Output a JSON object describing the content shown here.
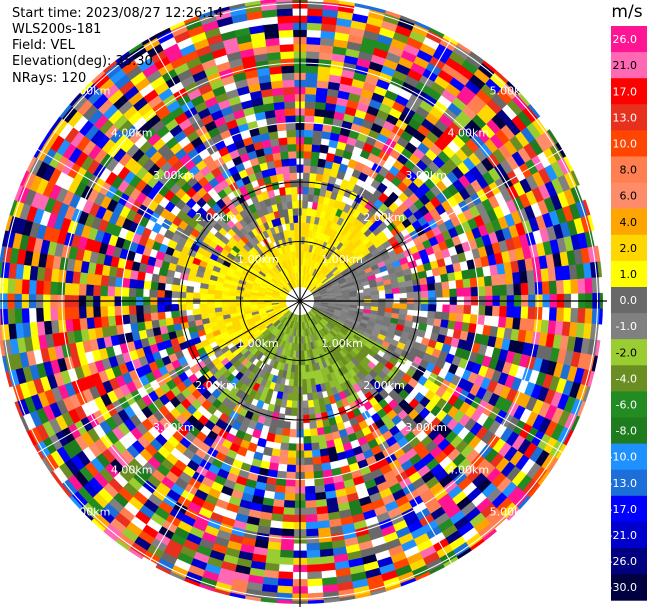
{
  "header": {
    "start_time": "Start time: 2023/08/27 12:26:14",
    "site": "WLS200s-181",
    "field": "Field: VEL",
    "elevation": "Elevation(deg): 35.30",
    "nrays": "NRays: 120"
  },
  "chart_data": {
    "type": "ppi-polar",
    "field": "VEL",
    "units": "m/s",
    "elevation_deg": 35.3,
    "n_rays": 120,
    "range_ring_labels": [
      "1.00km",
      "2.00km",
      "3.00km",
      "4.00km",
      "5.00km"
    ],
    "colorbar": {
      "label": "m/s",
      "ticks": [
        "26.0",
        "21.0",
        "17.0",
        "13.0",
        "10.0",
        "8.0",
        "6.0",
        "4.0",
        "2.0",
        "1.0",
        "0.0",
        "-1.0",
        "-2.0",
        "-4.0",
        "-6.0",
        "-8.0",
        "-10.0",
        "-13.0",
        "-17.0",
        "-21.0",
        "-26.0",
        "-30.0"
      ],
      "colors": [
        "#ff1493",
        "#ff69b4",
        "#ff0000",
        "#e8301f",
        "#ff4500",
        "#ff7f50",
        "#ff8c69",
        "#ffa500",
        "#ffd700",
        "#ffff00",
        "#696969",
        "#808080",
        "#9acd32",
        "#6b8e23",
        "#228b22",
        "#1e7b1e",
        "#1e90ff",
        "#1c6fd9",
        "#0000ff",
        "#0000cd",
        "#000080",
        "#000040"
      ]
    }
  }
}
